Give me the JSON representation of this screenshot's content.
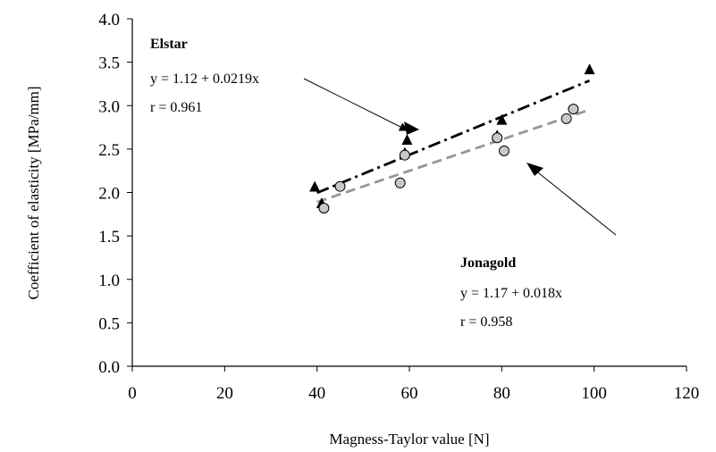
{
  "chart_data": {
    "type": "scatter",
    "xlabel": "Magness-Taylor value [N]",
    "ylabel": "Coefficient of elasticity [MPa/mm]",
    "xlim": [
      0,
      120
    ],
    "ylim": [
      0.0,
      4.0
    ],
    "x_ticks": [
      "0",
      "20",
      "40",
      "60",
      "80",
      "100",
      "120"
    ],
    "y_ticks": [
      "0.0",
      "0.5",
      "1.0",
      "1.5",
      "2.0",
      "2.5",
      "3.0",
      "3.5",
      "4.0"
    ],
    "grid": false,
    "series": [
      {
        "name": "Elstar",
        "marker": "triangle",
        "color": "#000000",
        "x": [
          39.5,
          41,
          59,
          59.5,
          79,
          80,
          99
        ],
        "y": [
          2.06,
          1.87,
          2.45,
          2.6,
          2.65,
          2.83,
          3.41
        ],
        "fit": {
          "intercept": 1.12,
          "slope": 0.0219,
          "x_range": [
            40,
            99
          ],
          "line_style": "dash-dot",
          "color": "#000000"
        }
      },
      {
        "name": "Jonagold",
        "marker": "circle",
        "color": "#c8c8c8",
        "x": [
          41.5,
          45,
          58,
          59,
          79,
          80.5,
          94,
          95.5
        ],
        "y": [
          1.82,
          2.07,
          2.11,
          2.43,
          2.63,
          2.48,
          2.85,
          2.96
        ],
        "fit": {
          "intercept": 1.17,
          "slope": 0.018,
          "x_range": [
            40,
            99
          ],
          "line_style": "dashed",
          "color": "#969696"
        }
      }
    ],
    "annotations": {
      "elstar": {
        "name": "Elstar",
        "equation": "y = 1.12 + 0.0219x",
        "r": "r = 0.961"
      },
      "jonagold": {
        "name": "Jonagold",
        "equation": "y = 1.17 + 0.018x",
        "r": "r = 0.958"
      }
    }
  }
}
